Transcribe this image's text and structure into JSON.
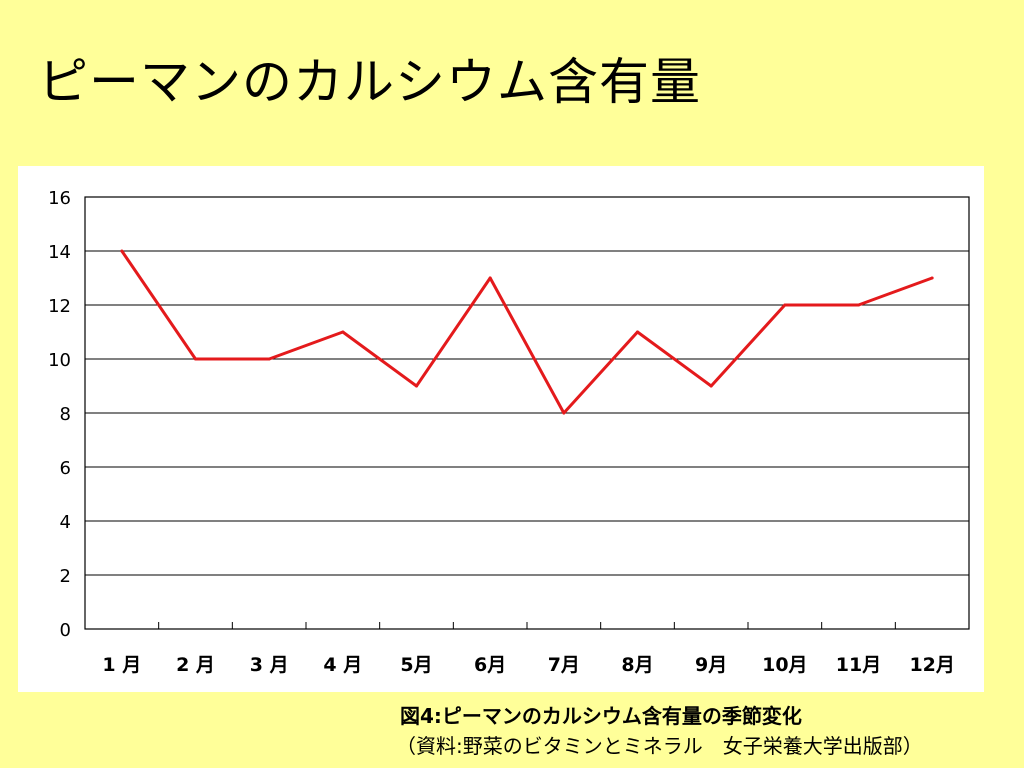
{
  "slide": {
    "title": "ピーマンのカルシウム含有量",
    "caption": "図4:ピーマンのカルシウム含有量の季節変化",
    "source": "（資料:野菜のビタミンとミネラル　女子栄養大学出版部）"
  },
  "chart_data": {
    "type": "line",
    "title": "",
    "xlabel": "",
    "ylabel": "",
    "categories": [
      "1 月",
      "2 月",
      "3 月",
      "4 月",
      "5月",
      "6月",
      "7月",
      "8月",
      "9月",
      "10月",
      "11月",
      "12月"
    ],
    "series": [
      {
        "values": [
          14,
          10,
          10,
          11,
          9,
          13,
          8,
          11,
          9,
          12,
          12,
          13
        ],
        "color": "#e41a1c"
      }
    ],
    "ylim": [
      0,
      16
    ],
    "yticks": [
      0,
      2,
      4,
      6,
      8,
      10,
      12,
      14,
      16
    ],
    "grid": true,
    "legend": "none"
  }
}
